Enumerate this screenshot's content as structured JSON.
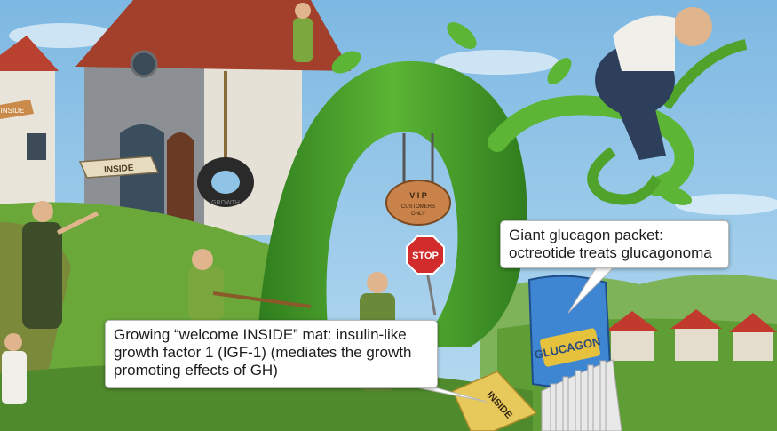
{
  "scene": {
    "signs": {
      "inside_sign_left": "INSIDE",
      "inside_sign_house": "INSIDE",
      "vip_sign_line1": "V I P",
      "vip_sign_line2": "CUSTOMERS",
      "vip_sign_line3": "ONLY",
      "stop_sign": "STOP",
      "glucagon_packet": "GLUCAGON",
      "inside_mat": "INSIDE",
      "tire_text": "GROWTH"
    },
    "colors": {
      "sky": "#8fc4e6",
      "beanstalk": "#4fa32a",
      "grass": "#6aa83a",
      "packet_blue": "#3f86d2"
    }
  },
  "callouts": {
    "glucagon": {
      "line1": "Giant glucagon packet:",
      "line2": "octreotide treats glucagonoma"
    },
    "igf1": {
      "line1": "Growing “welcome INSIDE” mat: insulin-like",
      "line2": "growth factor 1 (IGF-1) (mediates the growth",
      "line3": "promoting effects of GH)"
    }
  }
}
